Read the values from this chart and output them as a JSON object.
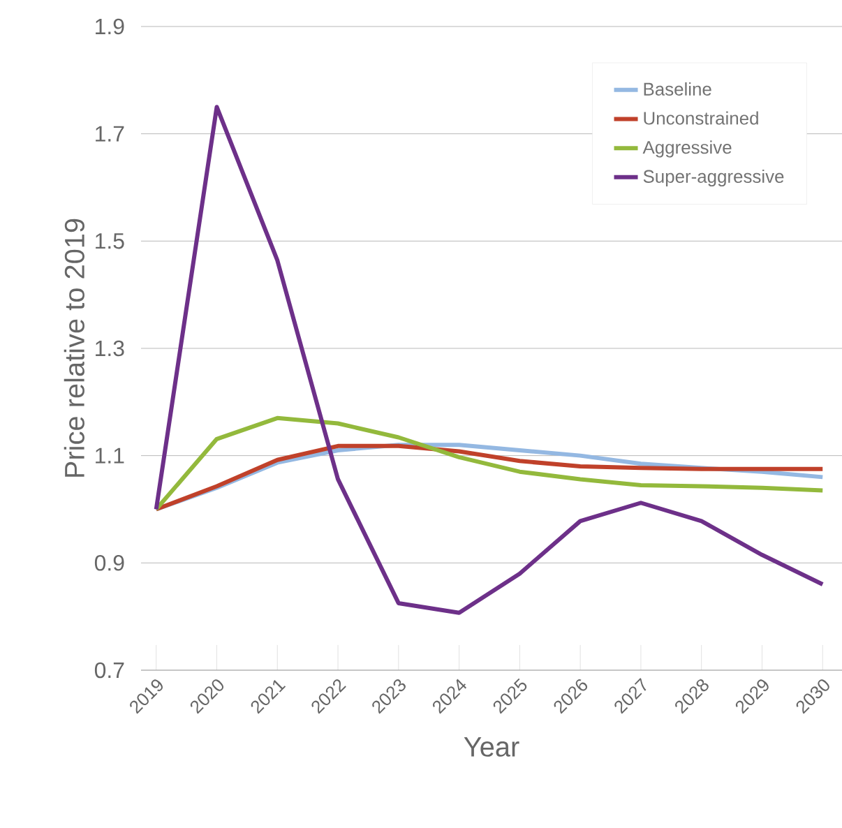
{
  "chart_data": {
    "type": "line",
    "xlabel": "Year",
    "ylabel": "Price relative to 2019",
    "x": [
      2019,
      2020,
      2021,
      2022,
      2023,
      2024,
      2025,
      2026,
      2027,
      2028,
      2029,
      2030
    ],
    "xlim": [
      2018.75,
      2030.32
    ],
    "xticks": [
      2019,
      2020,
      2021,
      2022,
      2023,
      2024,
      2025,
      2026,
      2027,
      2028,
      2029,
      2030
    ],
    "ylim": [
      0.7,
      1.9
    ],
    "yticks": [
      0.7,
      0.9,
      1.1,
      1.3,
      1.5,
      1.7,
      1.9
    ],
    "grid": "y",
    "legend": "top right",
    "marker": "none",
    "line_style": "solid",
    "series": [
      {
        "name": "Baseline",
        "color": "#94b8e2",
        "values": [
          1.0,
          1.04,
          1.087,
          1.11,
          1.12,
          1.12,
          1.11,
          1.1,
          1.085,
          1.077,
          1.07,
          1.06
        ]
      },
      {
        "name": "Unconstrained",
        "color": "#c0412a",
        "values": [
          1.0,
          1.043,
          1.092,
          1.118,
          1.118,
          1.108,
          1.09,
          1.08,
          1.077,
          1.075,
          1.075,
          1.075
        ]
      },
      {
        "name": "Aggressive",
        "color": "#93b93c",
        "values": [
          1.0,
          1.131,
          1.17,
          1.16,
          1.134,
          1.097,
          1.07,
          1.056,
          1.045,
          1.043,
          1.04,
          1.035
        ]
      },
      {
        "name": "Super-aggressive",
        "color": "#6d3089",
        "values": [
          1.0,
          1.75,
          1.464,
          1.056,
          0.825,
          0.807,
          0.88,
          0.978,
          1.012,
          0.978,
          0.915,
          0.86
        ]
      }
    ]
  }
}
